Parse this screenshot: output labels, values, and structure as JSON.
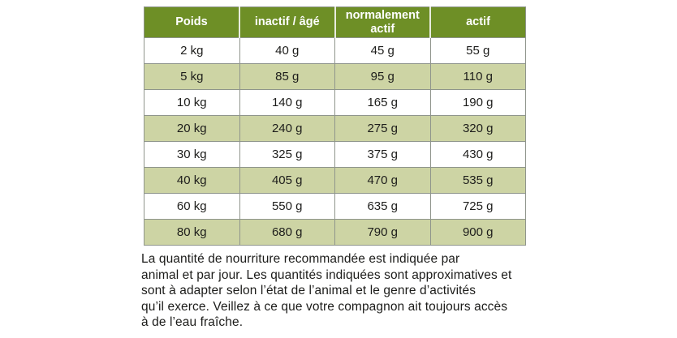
{
  "table": {
    "headers": [
      "Poids",
      "inactif / âgé",
      "normalement actif",
      "actif"
    ],
    "rows": [
      [
        "2 kg",
        "40 g",
        "45 g",
        "55 g"
      ],
      [
        "5 kg",
        "85 g",
        "95 g",
        "110 g"
      ],
      [
        "10 kg",
        "140 g",
        "165 g",
        "190 g"
      ],
      [
        "20 kg",
        "240 g",
        "275 g",
        "320 g"
      ],
      [
        "30 kg",
        "325 g",
        "375 g",
        "430 g"
      ],
      [
        "40 kg",
        "405 g",
        "470 g",
        "535 g"
      ],
      [
        "60 kg",
        "550 g",
        "635 g",
        "725 g"
      ],
      [
        "80 kg",
        "680 g",
        "790 g",
        "900 g"
      ]
    ]
  },
  "note": {
    "lines": [
      "La quantité de nourriture recommandée est indiquée par",
      "animal et par jour. Les quantités indiquées sont approximatives et",
      "sont à adapter selon l’état de l’animal et le genre d’activités",
      "qu’il exerce. Veillez à ce que votre compagnon ait toujours accès",
      "à de l’eau fraîche."
    ]
  },
  "colors": {
    "header_bg": "#6e8f26",
    "alt_row_bg": "#cdd4a4",
    "border": "#8f958c",
    "text": "#1d1d1b"
  }
}
